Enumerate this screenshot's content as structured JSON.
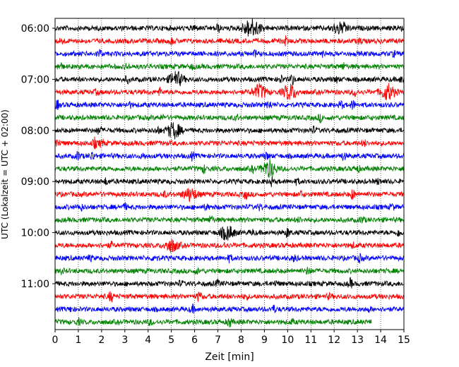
{
  "chart_data": {
    "type": "line",
    "title": "",
    "xlabel": "Zeit  [min]",
    "ylabel": "UTC (Lokalzeit = UTC + 02:00)",
    "xlim": [
      0,
      15
    ],
    "x_ticks": [
      0,
      1,
      2,
      3,
      4,
      5,
      6,
      7,
      8,
      9,
      10,
      11,
      12,
      13,
      14,
      15
    ],
    "y_tick_labels": [
      {
        "label": "06:00",
        "trace_index": 0
      },
      {
        "label": "07:00",
        "trace_index": 4
      },
      {
        "label": "08:00",
        "trace_index": 8
      },
      {
        "label": "09:00",
        "trace_index": 12
      },
      {
        "label": "10:00",
        "trace_index": 16
      },
      {
        "label": "11:00",
        "trace_index": 20
      }
    ],
    "grid": "vertical dotted",
    "trace_minutes": 15,
    "colors_cycle": [
      "#000000",
      "#ff0000",
      "#0000ff",
      "#008000"
    ],
    "traces": [
      {
        "start": "06:00",
        "end_min": 15,
        "color": "#000000",
        "events": [
          [
            8.3,
            1.6
          ],
          [
            8.6,
            1.4
          ],
          [
            12.2,
            1.4
          ],
          [
            12.5,
            0.8
          ],
          [
            6.0,
            0.8
          ],
          [
            7.0,
            1.0
          ],
          [
            14.8,
            1.0
          ]
        ]
      },
      {
        "start": "06:15",
        "end_min": 15,
        "color": "#ff0000",
        "events": [
          [
            5.0,
            0.8
          ],
          [
            9.9,
            1.0
          ],
          [
            0.3,
            0.6
          ],
          [
            13.1,
            0.6
          ]
        ]
      },
      {
        "start": "06:30",
        "end_min": 15,
        "color": "#0000ff",
        "events": [
          [
            1.9,
            0.9
          ],
          [
            8.6,
            0.6
          ],
          [
            14.6,
            0.6
          ],
          [
            11.5,
            0.5
          ]
        ]
      },
      {
        "start": "06:45",
        "end_min": 15,
        "color": "#008000",
        "events": [
          [
            0.2,
            1.0
          ],
          [
            3.1,
            0.6
          ],
          [
            12.4,
            0.7
          ],
          [
            5.9,
            0.5
          ]
        ]
      },
      {
        "start": "07:00",
        "end_min": 15,
        "color": "#000000",
        "events": [
          [
            5.2,
            1.9
          ],
          [
            3.1,
            0.7
          ],
          [
            9.7,
            0.8
          ],
          [
            10.2,
            1.2
          ],
          [
            14.9,
            0.8
          ],
          [
            12.1,
            0.6
          ]
        ]
      },
      {
        "start": "07:15",
        "end_min": 15,
        "color": "#ff0000",
        "events": [
          [
            8.8,
            1.8
          ],
          [
            10.1,
            2.0
          ],
          [
            14.3,
            2.0
          ],
          [
            4.5,
            0.8
          ],
          [
            12.9,
            0.9
          ],
          [
            1.8,
            0.5
          ]
        ]
      },
      {
        "start": "07:30",
        "end_min": 15,
        "color": "#0000ff",
        "events": [
          [
            0.1,
            1.0
          ],
          [
            9.2,
            0.9
          ],
          [
            12.3,
            0.9
          ],
          [
            12.8,
            1.0
          ],
          [
            3.2,
            0.6
          ]
        ]
      },
      {
        "start": "07:45",
        "end_min": 15,
        "color": "#008000",
        "events": [
          [
            11.4,
            0.8
          ],
          [
            4.6,
            0.5
          ],
          [
            7.8,
            0.5
          ]
        ]
      },
      {
        "start": "08:00",
        "end_min": 15,
        "color": "#000000",
        "events": [
          [
            5.1,
            2.0
          ],
          [
            1.9,
            1.0
          ],
          [
            11.1,
            0.7
          ],
          [
            4.4,
            0.8
          ]
        ]
      },
      {
        "start": "08:15",
        "end_min": 15,
        "color": "#ff0000",
        "events": [
          [
            0.1,
            1.0
          ],
          [
            1.7,
            1.2
          ],
          [
            2.0,
            1.0
          ],
          [
            13.3,
            0.6
          ]
        ]
      },
      {
        "start": "08:30",
        "end_min": 15,
        "color": "#0000ff",
        "events": [
          [
            1.0,
            1.0
          ],
          [
            1.6,
            1.0
          ],
          [
            5.9,
            0.8
          ],
          [
            9.1,
            0.8
          ],
          [
            12.4,
            0.9
          ],
          [
            3.8,
            0.5
          ]
        ]
      },
      {
        "start": "08:45",
        "end_min": 15,
        "color": "#008000",
        "events": [
          [
            9.2,
            2.2
          ],
          [
            6.4,
            0.9
          ],
          [
            13.0,
            0.8
          ],
          [
            8.5,
            0.6
          ]
        ]
      },
      {
        "start": "09:00",
        "end_min": 15,
        "color": "#000000",
        "events": [
          [
            2.2,
            0.7
          ],
          [
            9.3,
            0.9
          ],
          [
            10.4,
            0.6
          ],
          [
            13.9,
            0.6
          ]
        ]
      },
      {
        "start": "09:15",
        "end_min": 15,
        "color": "#ff0000",
        "events": [
          [
            5.8,
            1.6
          ],
          [
            8.2,
            1.0
          ],
          [
            12.8,
            1.2
          ],
          [
            4.7,
            0.6
          ],
          [
            10.6,
            0.6
          ]
        ]
      },
      {
        "start": "09:30",
        "end_min": 15,
        "color": "#0000ff",
        "events": [
          [
            1.1,
            0.8
          ],
          [
            3.0,
            0.7
          ],
          [
            6.5,
            0.6
          ],
          [
            8.8,
            0.6
          ],
          [
            14.5,
            0.6
          ]
        ]
      },
      {
        "start": "09:45",
        "end_min": 15,
        "color": "#008000",
        "events": [
          [
            6.7,
            0.9
          ],
          [
            13.2,
            0.8
          ],
          [
            10.5,
            0.5
          ]
        ]
      },
      {
        "start": "10:00",
        "end_min": 15,
        "color": "#000000",
        "events": [
          [
            7.4,
            1.8
          ],
          [
            10.0,
            1.1
          ],
          [
            14.8,
            0.9
          ],
          [
            8.5,
            0.5
          ]
        ]
      },
      {
        "start": "10:15",
        "end_min": 15,
        "color": "#ff0000",
        "events": [
          [
            5.0,
            1.6
          ],
          [
            2.4,
            0.6
          ],
          [
            7.3,
            0.6
          ],
          [
            12.8,
            0.5
          ]
        ]
      },
      {
        "start": "10:30",
        "end_min": 15,
        "color": "#0000ff",
        "events": [
          [
            4.3,
            1.0
          ],
          [
            7.5,
            0.8
          ],
          [
            10.3,
            0.8
          ],
          [
            13.1,
            0.8
          ],
          [
            1.5,
            0.5
          ]
        ]
      },
      {
        "start": "10:45",
        "end_min": 15,
        "color": "#008000",
        "events": [
          [
            10.9,
            1.0
          ],
          [
            0.3,
            0.5
          ],
          [
            6.1,
            0.5
          ]
        ]
      },
      {
        "start": "11:00",
        "end_min": 15,
        "color": "#000000",
        "events": [
          [
            12.7,
            1.1
          ],
          [
            7.0,
            0.7
          ],
          [
            5.4,
            0.5
          ],
          [
            9.5,
            0.5
          ]
        ]
      },
      {
        "start": "11:15",
        "end_min": 15,
        "color": "#ff0000",
        "events": [
          [
            2.4,
            1.3
          ],
          [
            6.2,
            1.2
          ],
          [
            8.2,
            0.6
          ],
          [
            11.8,
            0.6
          ]
        ]
      },
      {
        "start": "11:30",
        "end_min": 15,
        "color": "#0000ff",
        "events": [
          [
            5.9,
            0.9
          ],
          [
            9.4,
            0.8
          ],
          [
            0.7,
            0.5
          ],
          [
            13.5,
            0.5
          ]
        ]
      },
      {
        "start": "11:45",
        "end_min": 13.6,
        "color": "#008000",
        "events": [
          [
            7.5,
            1.2
          ],
          [
            1.0,
            0.6
          ],
          [
            4.1,
            0.6
          ],
          [
            10.2,
            0.5
          ]
        ]
      }
    ]
  }
}
